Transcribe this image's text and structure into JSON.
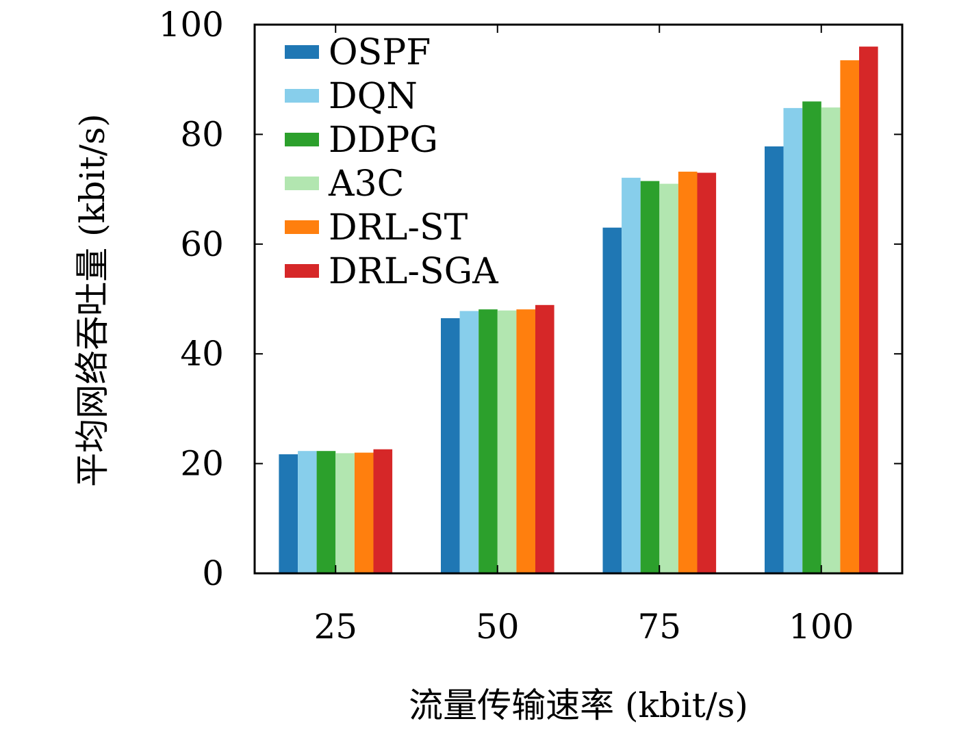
{
  "chart_data": {
    "type": "bar",
    "title": "",
    "xlabel": "流量传输速率 (kbit/s)",
    "ylabel": "平均网络吞吐量 (kbit/s)",
    "categories": [
      "25",
      "50",
      "75",
      "100"
    ],
    "ylim": [
      0,
      100
    ],
    "yticks": [
      "0",
      "20",
      "40",
      "60",
      "80",
      "100"
    ],
    "grid": false,
    "legend_position": "top-left",
    "series": [
      {
        "name": "OSPF",
        "color": "#1f77b4",
        "values": [
          21.7,
          46.5,
          63.0,
          77.8
        ]
      },
      {
        "name": "DQN",
        "color": "#87ceeb",
        "values": [
          22.3,
          47.8,
          72.1,
          84.8
        ]
      },
      {
        "name": "DDPG",
        "color": "#2ca02c",
        "values": [
          22.3,
          48.1,
          71.5,
          86.0
        ]
      },
      {
        "name": "A3C",
        "color": "#b2e6b0",
        "values": [
          21.9,
          47.9,
          71.0,
          84.9
        ]
      },
      {
        "name": "DRL-ST",
        "color": "#ff7f0e",
        "values": [
          22.0,
          48.1,
          73.2,
          93.5
        ]
      },
      {
        "name": "DRL-SGA",
        "color": "#d62728",
        "values": [
          22.6,
          48.9,
          73.0,
          96.0
        ]
      }
    ]
  }
}
